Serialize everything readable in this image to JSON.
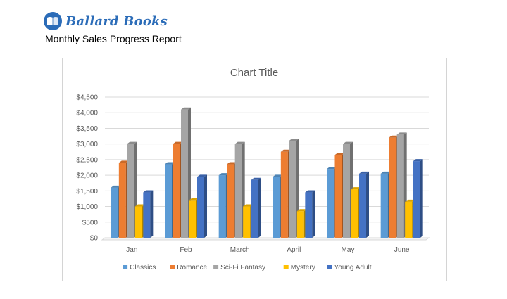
{
  "header": {
    "brand_name": "Ballard Books",
    "subtitle": "Monthly Sales Progress Report"
  },
  "colors": {
    "brand": "#2b6cb8",
    "Classics": "#5b9bd5",
    "Romance": "#ed7d31",
    "Sci-Fi Fantasy": "#a5a5a5",
    "Mystery": "#ffc000",
    "Young Adult": "#4472c4"
  },
  "chart_data": {
    "type": "bar",
    "style": "3d-clustered-column",
    "title": "Chart Title",
    "xlabel": "",
    "ylabel": "",
    "categories": [
      "Jan",
      "Feb",
      "March",
      "April",
      "May",
      "June"
    ],
    "ylim": [
      0,
      4500
    ],
    "ytick_labels": [
      "$0",
      "$500",
      "$1,000",
      "$1,500",
      "$2,000",
      "$2,500",
      "$3,000",
      "$3,500",
      "$4,000",
      "$4,500"
    ],
    "ytick_values": [
      0,
      500,
      1000,
      1500,
      2000,
      2500,
      3000,
      3500,
      4000,
      4500
    ],
    "grid": true,
    "legend": "bottom",
    "series": [
      {
        "name": "Classics",
        "values": [
          1600,
          2350,
          2000,
          1950,
          2200,
          2050
        ]
      },
      {
        "name": "Romance",
        "values": [
          2400,
          3000,
          2350,
          2750,
          2650,
          3200
        ]
      },
      {
        "name": "Sci-Fi Fantasy",
        "values": [
          3000,
          4100,
          3000,
          3100,
          3000,
          3300
        ]
      },
      {
        "name": "Mystery",
        "values": [
          1000,
          1200,
          1000,
          850,
          1550,
          1150
        ]
      },
      {
        "name": "Young Adult",
        "values": [
          1450,
          1950,
          1850,
          1450,
          2050,
          2450
        ]
      }
    ]
  }
}
